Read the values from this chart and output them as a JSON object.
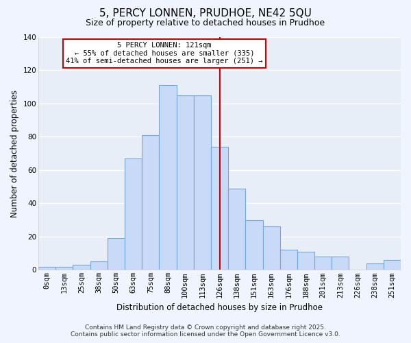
{
  "title": "5, PERCY LONNEN, PRUDHOE, NE42 5QU",
  "subtitle": "Size of property relative to detached houses in Prudhoe",
  "xlabel": "Distribution of detached houses by size in Prudhoe",
  "ylabel": "Number of detached properties",
  "bar_labels": [
    "0sqm",
    "13sqm",
    "25sqm",
    "38sqm",
    "50sqm",
    "63sqm",
    "75sqm",
    "88sqm",
    "100sqm",
    "113sqm",
    "126sqm",
    "138sqm",
    "151sqm",
    "163sqm",
    "176sqm",
    "188sqm",
    "201sqm",
    "213sqm",
    "226sqm",
    "238sqm",
    "251sqm"
  ],
  "bar_values": [
    2,
    2,
    3,
    5,
    19,
    67,
    81,
    111,
    105,
    105,
    74,
    49,
    30,
    26,
    12,
    11,
    8,
    8,
    0,
    4,
    6
  ],
  "bar_color": "#c9daf8",
  "bar_edge_color": "#6fa8dc",
  "reference_line_label": "5 PERCY LONNEN: 121sqm",
  "annotation_line1": "← 55% of detached houses are smaller (335)",
  "annotation_line2": "41% of semi-detached houses are larger (251) →",
  "ylim": [
    0,
    140
  ],
  "yticks": [
    0,
    20,
    40,
    60,
    80,
    100,
    120,
    140
  ],
  "footer_line1": "Contains HM Land Registry data © Crown copyright and database right 2025.",
  "footer_line2": "Contains public sector information licensed under the Open Government Licence v3.0.",
  "bg_color": "#f0f4ff",
  "plot_bg_color": "#e8eef8",
  "grid_color": "#ffffff",
  "annotation_box_color": "#ffffff",
  "annotation_box_edge": "#cc0000",
  "ref_line_color": "#cc0000",
  "title_fontsize": 11,
  "subtitle_fontsize": 9,
  "axis_label_fontsize": 8.5,
  "tick_fontsize": 7.5,
  "footer_fontsize": 6.5
}
